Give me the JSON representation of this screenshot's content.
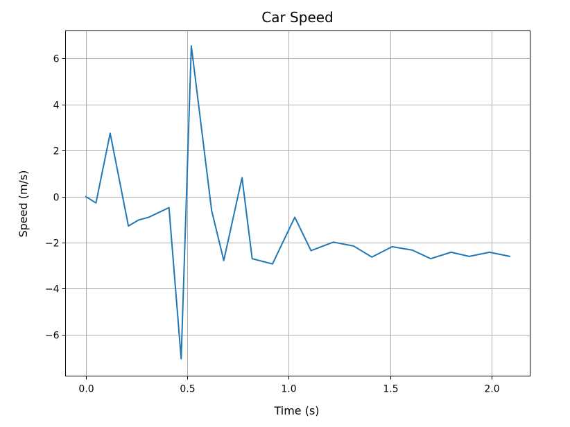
{
  "chart_data": {
    "type": "line",
    "title": "Car Speed",
    "xlabel": "Time (s)",
    "ylabel": "Speed (m/s)",
    "xlim": [
      -0.1,
      2.19
    ],
    "ylim": [
      -7.8,
      7.2
    ],
    "xticks": [
      0.0,
      0.5,
      1.0,
      1.5,
      2.0
    ],
    "xtick_labels": [
      "0.0",
      "0.5",
      "1.0",
      "1.5",
      "2.0"
    ],
    "yticks": [
      -6,
      -4,
      -2,
      0,
      2,
      4,
      6
    ],
    "ytick_labels": [
      "−6",
      "−4",
      "−2",
      "0",
      "2",
      "4",
      "6"
    ],
    "grid": true,
    "series": [
      {
        "color": "#1f77b4",
        "x": [
          0.0,
          0.05,
          0.12,
          0.21,
          0.26,
          0.31,
          0.41,
          0.47,
          0.52,
          0.62,
          0.68,
          0.77,
          0.82,
          0.92,
          1.03,
          1.11,
          1.22,
          1.32,
          1.41,
          1.51,
          1.61,
          1.7,
          1.8,
          1.89,
          1.99,
          2.09
        ],
        "y": [
          0.0,
          -0.28,
          2.75,
          -1.28,
          -1.02,
          -0.9,
          -0.48,
          -7.05,
          6.55,
          -0.6,
          -2.78,
          0.82,
          -2.7,
          -2.93,
          -0.9,
          -2.35,
          -1.98,
          -2.15,
          -2.63,
          -2.18,
          -2.33,
          -2.7,
          -2.42,
          -2.6,
          -2.42,
          -2.6
        ]
      }
    ]
  }
}
